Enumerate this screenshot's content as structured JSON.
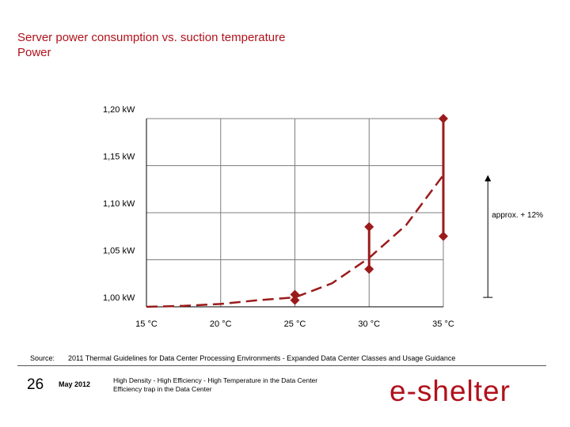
{
  "title": {
    "line1": "Server power consumption vs. suction temperature",
    "line2": "Power"
  },
  "chart_data": {
    "type": "line",
    "title": "Server power consumption vs. suction temperature",
    "x": [
      15,
      20,
      25,
      30,
      35
    ],
    "x_tick_labels": [
      "15 °C",
      "20 °C",
      "25 °C",
      "30 °C",
      "35 °C"
    ],
    "y_tick_labels": [
      "1,00 kW",
      "1,05 kW",
      "1,10 kW",
      "1,15 kW",
      "1,20 kW"
    ],
    "y_ticks": [
      1.0,
      1.05,
      1.1,
      1.15,
      1.2
    ],
    "xlim": [
      15,
      35
    ],
    "ylim": [
      1.0,
      1.2
    ],
    "grid": true,
    "series": [
      {
        "style": "dashed",
        "x": [
          15,
          17.5,
          20,
          22.5,
          25,
          27.5,
          30,
          32.5,
          35
        ],
        "y": [
          1.0,
          1.001,
          1.003,
          1.007,
          1.01,
          1.025,
          1.052,
          1.087,
          1.14
        ]
      }
    ],
    "error_bars": [
      {
        "x": 25,
        "low": 1.007,
        "high": 1.013
      },
      {
        "x": 30,
        "low": 1.04,
        "high": 1.085
      },
      {
        "x": 35,
        "low": 1.075,
        "high": 1.2
      }
    ],
    "annotation": {
      "text": "approx. + 12%",
      "x": 38,
      "from": 1.01,
      "to": 1.14
    },
    "colors": {
      "line": "#9b1b1b",
      "marker": "#9b1b1b",
      "grid": "#7f7f7f",
      "axis": "#000000"
    }
  },
  "source": {
    "label": "Source:",
    "text": "2011 Thermal Guidelines for Data Center Processing Environments - Expanded Data Center Classes and Usage Guidance"
  },
  "footer": {
    "page": "26",
    "date": "May 2012",
    "line1": "High Density - High Efficiency - High Temperature in the Data Center",
    "line2": "Efficiency trap in the Data Center"
  },
  "logo": {
    "text": "e-shelter",
    "color": "#b0121b"
  }
}
